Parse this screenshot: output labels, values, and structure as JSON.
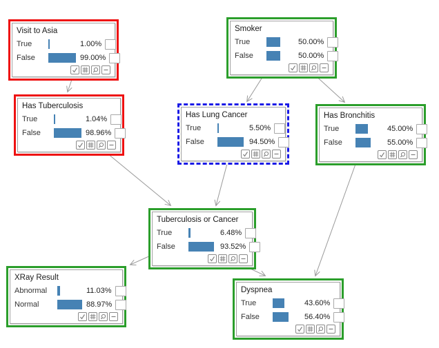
{
  "app": {
    "view": "bayesian-network-canvas",
    "background": "#ffffff"
  },
  "colors": {
    "node_border_red": "#ee1111",
    "node_border_green": "#2b9e2b",
    "node_border_selected_blue": "#1a1ae6",
    "probability_bar": "#4682b4",
    "edge_gray": "#999999",
    "inner_border_gray": "#a0a0a0"
  },
  "icons": {
    "node_toolbar": [
      "check-icon",
      "grid-table-icon",
      "magnifier-icon",
      "collapse-minus-icon"
    ],
    "row_checkbox": "evidence-checkbox"
  },
  "nodes": [
    {
      "id": "visit-to-asia",
      "title": "Visit to Asia",
      "border": "red",
      "rows": [
        {
          "label": "True",
          "pct": "1.00%",
          "value": 1.0
        },
        {
          "label": "False",
          "pct": "99.00%",
          "value": 99.0
        }
      ]
    },
    {
      "id": "smoker",
      "title": "Smoker",
      "border": "green",
      "rows": [
        {
          "label": "True",
          "pct": "50.00%",
          "value": 50.0
        },
        {
          "label": "False",
          "pct": "50.00%",
          "value": 50.0
        }
      ]
    },
    {
      "id": "has-tuberculosis",
      "title": "Has Tuberculosis",
      "border": "red",
      "rows": [
        {
          "label": "True",
          "pct": "1.04%",
          "value": 1.04
        },
        {
          "label": "False",
          "pct": "98.96%",
          "value": 98.96
        }
      ]
    },
    {
      "id": "has-lung-cancer",
      "title": "Has Lung Cancer",
      "border": "blue-dashed",
      "rows": [
        {
          "label": "True",
          "pct": "5.50%",
          "value": 5.5
        },
        {
          "label": "False",
          "pct": "94.50%",
          "value": 94.5
        }
      ]
    },
    {
      "id": "has-bronchitis",
      "title": "Has Bronchitis",
      "border": "green",
      "rows": [
        {
          "label": "True",
          "pct": "45.00%",
          "value": 45.0
        },
        {
          "label": "False",
          "pct": "55.00%",
          "value": 55.0
        }
      ]
    },
    {
      "id": "tuberculosis-or-cancer",
      "title": "Tuberculosis or Cancer",
      "border": "green",
      "rows": [
        {
          "label": "True",
          "pct": "6.48%",
          "value": 6.48
        },
        {
          "label": "False",
          "pct": "93.52%",
          "value": 93.52
        }
      ]
    },
    {
      "id": "xray-result",
      "title": "XRay Result",
      "border": "green",
      "rows": [
        {
          "label": "Abnormal",
          "pct": "11.03%",
          "value": 11.03
        },
        {
          "label": "Normal",
          "pct": "88.97%",
          "value": 88.97
        }
      ]
    },
    {
      "id": "dyspnea",
      "title": "Dyspnea",
      "border": "green",
      "rows": [
        {
          "label": "True",
          "pct": "43.60%",
          "value": 43.6
        },
        {
          "label": "False",
          "pct": "56.40%",
          "value": 56.4
        }
      ]
    }
  ],
  "edges": [
    {
      "from": "visit-to-asia",
      "to": "has-tuberculosis"
    },
    {
      "from": "has-tuberculosis",
      "to": "tuberculosis-or-cancer"
    },
    {
      "from": "smoker",
      "to": "has-lung-cancer"
    },
    {
      "from": "smoker",
      "to": "has-bronchitis"
    },
    {
      "from": "has-lung-cancer",
      "to": "tuberculosis-or-cancer"
    },
    {
      "from": "has-bronchitis",
      "to": "dyspnea"
    },
    {
      "from": "tuberculosis-or-cancer",
      "to": "xray-result"
    },
    {
      "from": "tuberculosis-or-cancer",
      "to": "dyspnea"
    }
  ]
}
